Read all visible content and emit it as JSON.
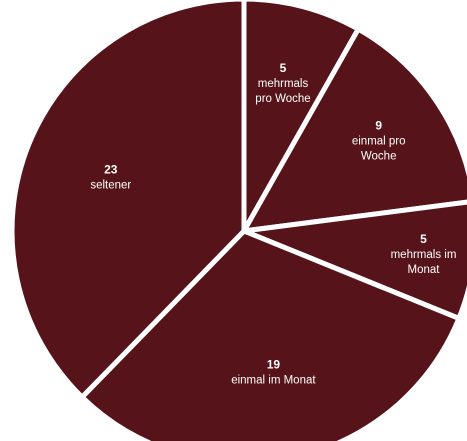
{
  "colors": {
    "slice": "#561319",
    "separator": "#ffffff",
    "label": "#ffffff"
  },
  "chart_data": {
    "type": "pie",
    "start": "12 o'clock, clockwise",
    "slices": [
      {
        "value": 5,
        "value_label": "5",
        "label_lines": [
          "mehrmals",
          "pro Woche"
        ]
      },
      {
        "value": 9,
        "value_label": "9",
        "label_lines": [
          "einmal pro",
          "Woche"
        ]
      },
      {
        "value": 5,
        "value_label": "5",
        "label_lines": [
          "mehrmals im",
          "Monat"
        ]
      },
      {
        "value": 19,
        "value_label": "19",
        "label_lines": [
          "einmal im Monat"
        ]
      },
      {
        "value": 23,
        "value_label": "23",
        "label_lines": [
          "seltener"
        ]
      }
    ]
  }
}
